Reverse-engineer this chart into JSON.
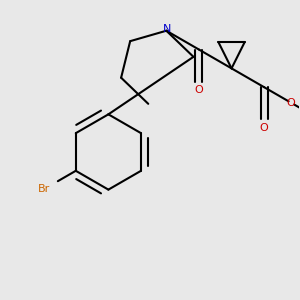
{
  "background_color": "#e8e8e8",
  "bond_color": "#000000",
  "br_color": "#cc6600",
  "n_color": "#0000cc",
  "o_color": "#cc0000",
  "lw": 1.5,
  "figsize": [
    3.0,
    3.0
  ],
  "dpi": 100,
  "xlim": [
    0,
    300
  ],
  "ylim": [
    0,
    300
  ]
}
